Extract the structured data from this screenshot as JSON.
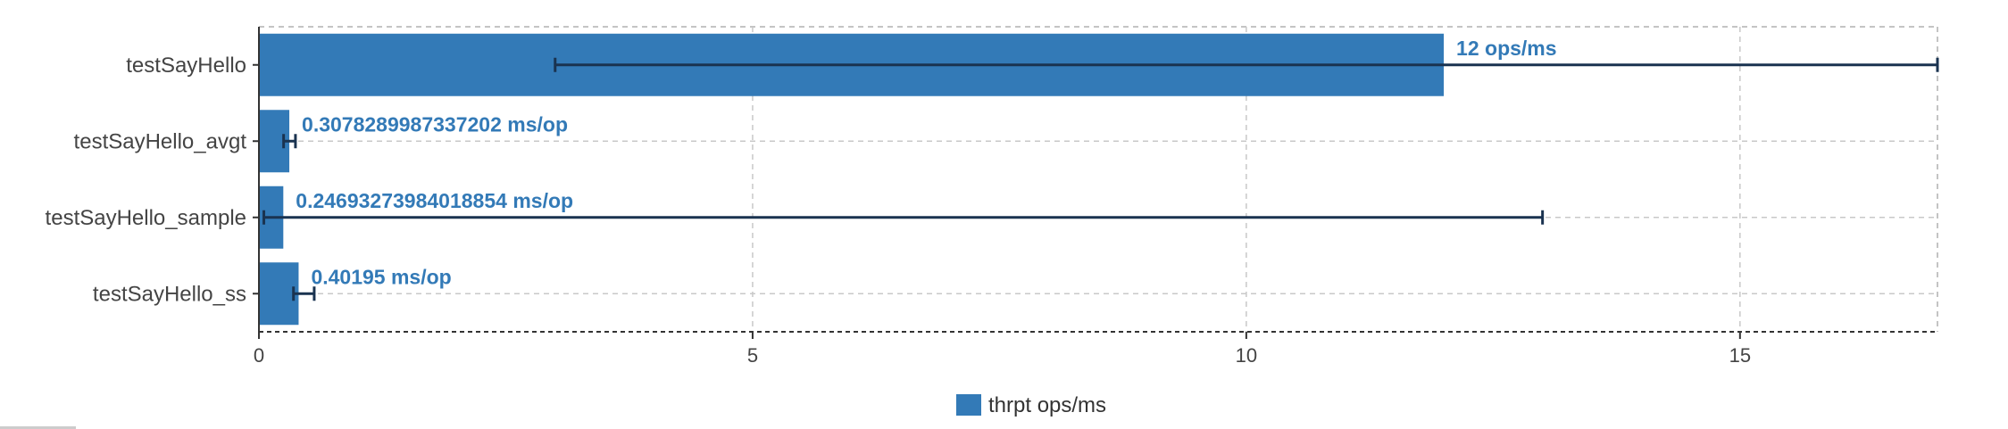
{
  "chart_data": {
    "type": "bar",
    "orientation": "horizontal",
    "categories": [
      "testSayHello",
      "testSayHello_avgt",
      "testSayHello_sample",
      "testSayHello_ss"
    ],
    "series": [
      {
        "name": "thrpt ops/ms",
        "values": [
          12,
          0.3078289987337202,
          0.24693273984018854,
          0.40195
        ],
        "labels": [
          "12 ops/ms",
          "0.3078289987337202 ms/op",
          "0.24693273984018854 ms/op",
          "0.40195 ms/op"
        ],
        "error_low": [
          3,
          0.25,
          0.05,
          0.35
        ],
        "error_high": [
          17,
          0.37,
          13,
          0.56
        ]
      }
    ],
    "xlim": [
      0,
      17
    ],
    "xticks": [
      0,
      5,
      10,
      15
    ],
    "grid": true,
    "legend": "bottom-center",
    "title": "",
    "xlabel": "",
    "ylabel": ""
  },
  "colors": {
    "bar": "#337ab7",
    "error_bar": "#1a3350",
    "label": "#337ab7"
  }
}
